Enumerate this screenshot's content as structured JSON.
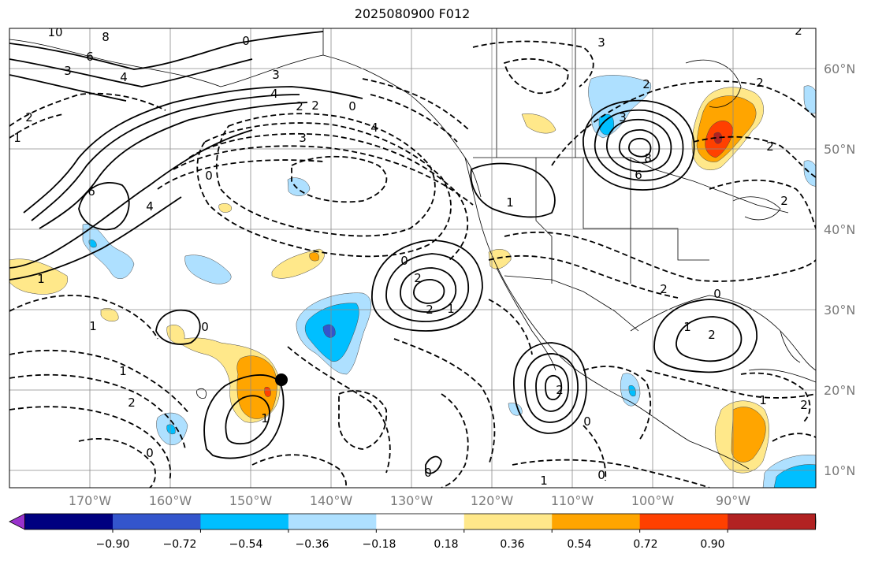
{
  "title": "2025080900 F012",
  "lat_labels": [
    "60°N",
    "50°N",
    "40°N",
    "30°N",
    "20°N",
    "10°N"
  ],
  "lon_labels": [
    "170°W",
    "160°W",
    "150°W",
    "140°W",
    "130°W",
    "120°W",
    "110°W",
    "100°W",
    "90°W"
  ],
  "colorbar": {
    "colors": [
      "#9932cc",
      "#000080",
      "#3355cc",
      "#00bfff",
      "#aee0ff",
      "#ffffff",
      "#ffe88a",
      "#ffa500",
      "#ff4000",
      "#b22222",
      "#ff8fb0"
    ],
    "tick_labels": [
      "−0.90",
      "−0.72",
      "−0.54",
      "−0.36",
      "−0.18",
      "0.18",
      "0.36",
      "0.54",
      "0.72",
      "0.90"
    ]
  },
  "contour_labels": [
    {
      "text": "10"
    },
    {
      "text": "8"
    },
    {
      "text": "6"
    },
    {
      "text": "4"
    },
    {
      "text": "3"
    },
    {
      "text": "0"
    },
    {
      "text": "3"
    },
    {
      "text": "4"
    },
    {
      "text": "2"
    },
    {
      "text": "2"
    },
    {
      "text": "0"
    },
    {
      "text": "4"
    },
    {
      "text": "3"
    },
    {
      "text": "3"
    },
    {
      "text": "2"
    },
    {
      "text": "8"
    },
    {
      "text": "6"
    },
    {
      "text": "2"
    },
    {
      "text": "1"
    },
    {
      "text": "0"
    },
    {
      "text": "6"
    },
    {
      "text": "4"
    },
    {
      "text": "1"
    },
    {
      "text": "1"
    },
    {
      "text": "0"
    },
    {
      "text": "2"
    },
    {
      "text": "2"
    },
    {
      "text": "1"
    },
    {
      "text": "1"
    },
    {
      "text": "2"
    },
    {
      "text": "0"
    },
    {
      "text": "1"
    },
    {
      "text": "0"
    },
    {
      "text": "2"
    },
    {
      "text": "2"
    },
    {
      "text": "1"
    },
    {
      "text": "2"
    },
    {
      "text": "0"
    },
    {
      "text": "2"
    },
    {
      "text": "0"
    },
    {
      "text": "0"
    },
    {
      "text": "1"
    },
    {
      "text": "2"
    },
    {
      "text": "2"
    },
    {
      "text": "1"
    },
    {
      "text": "2"
    },
    {
      "text": "0"
    },
    {
      "text": "1"
    },
    {
      "text": "3"
    },
    {
      "text": "2"
    }
  ]
}
